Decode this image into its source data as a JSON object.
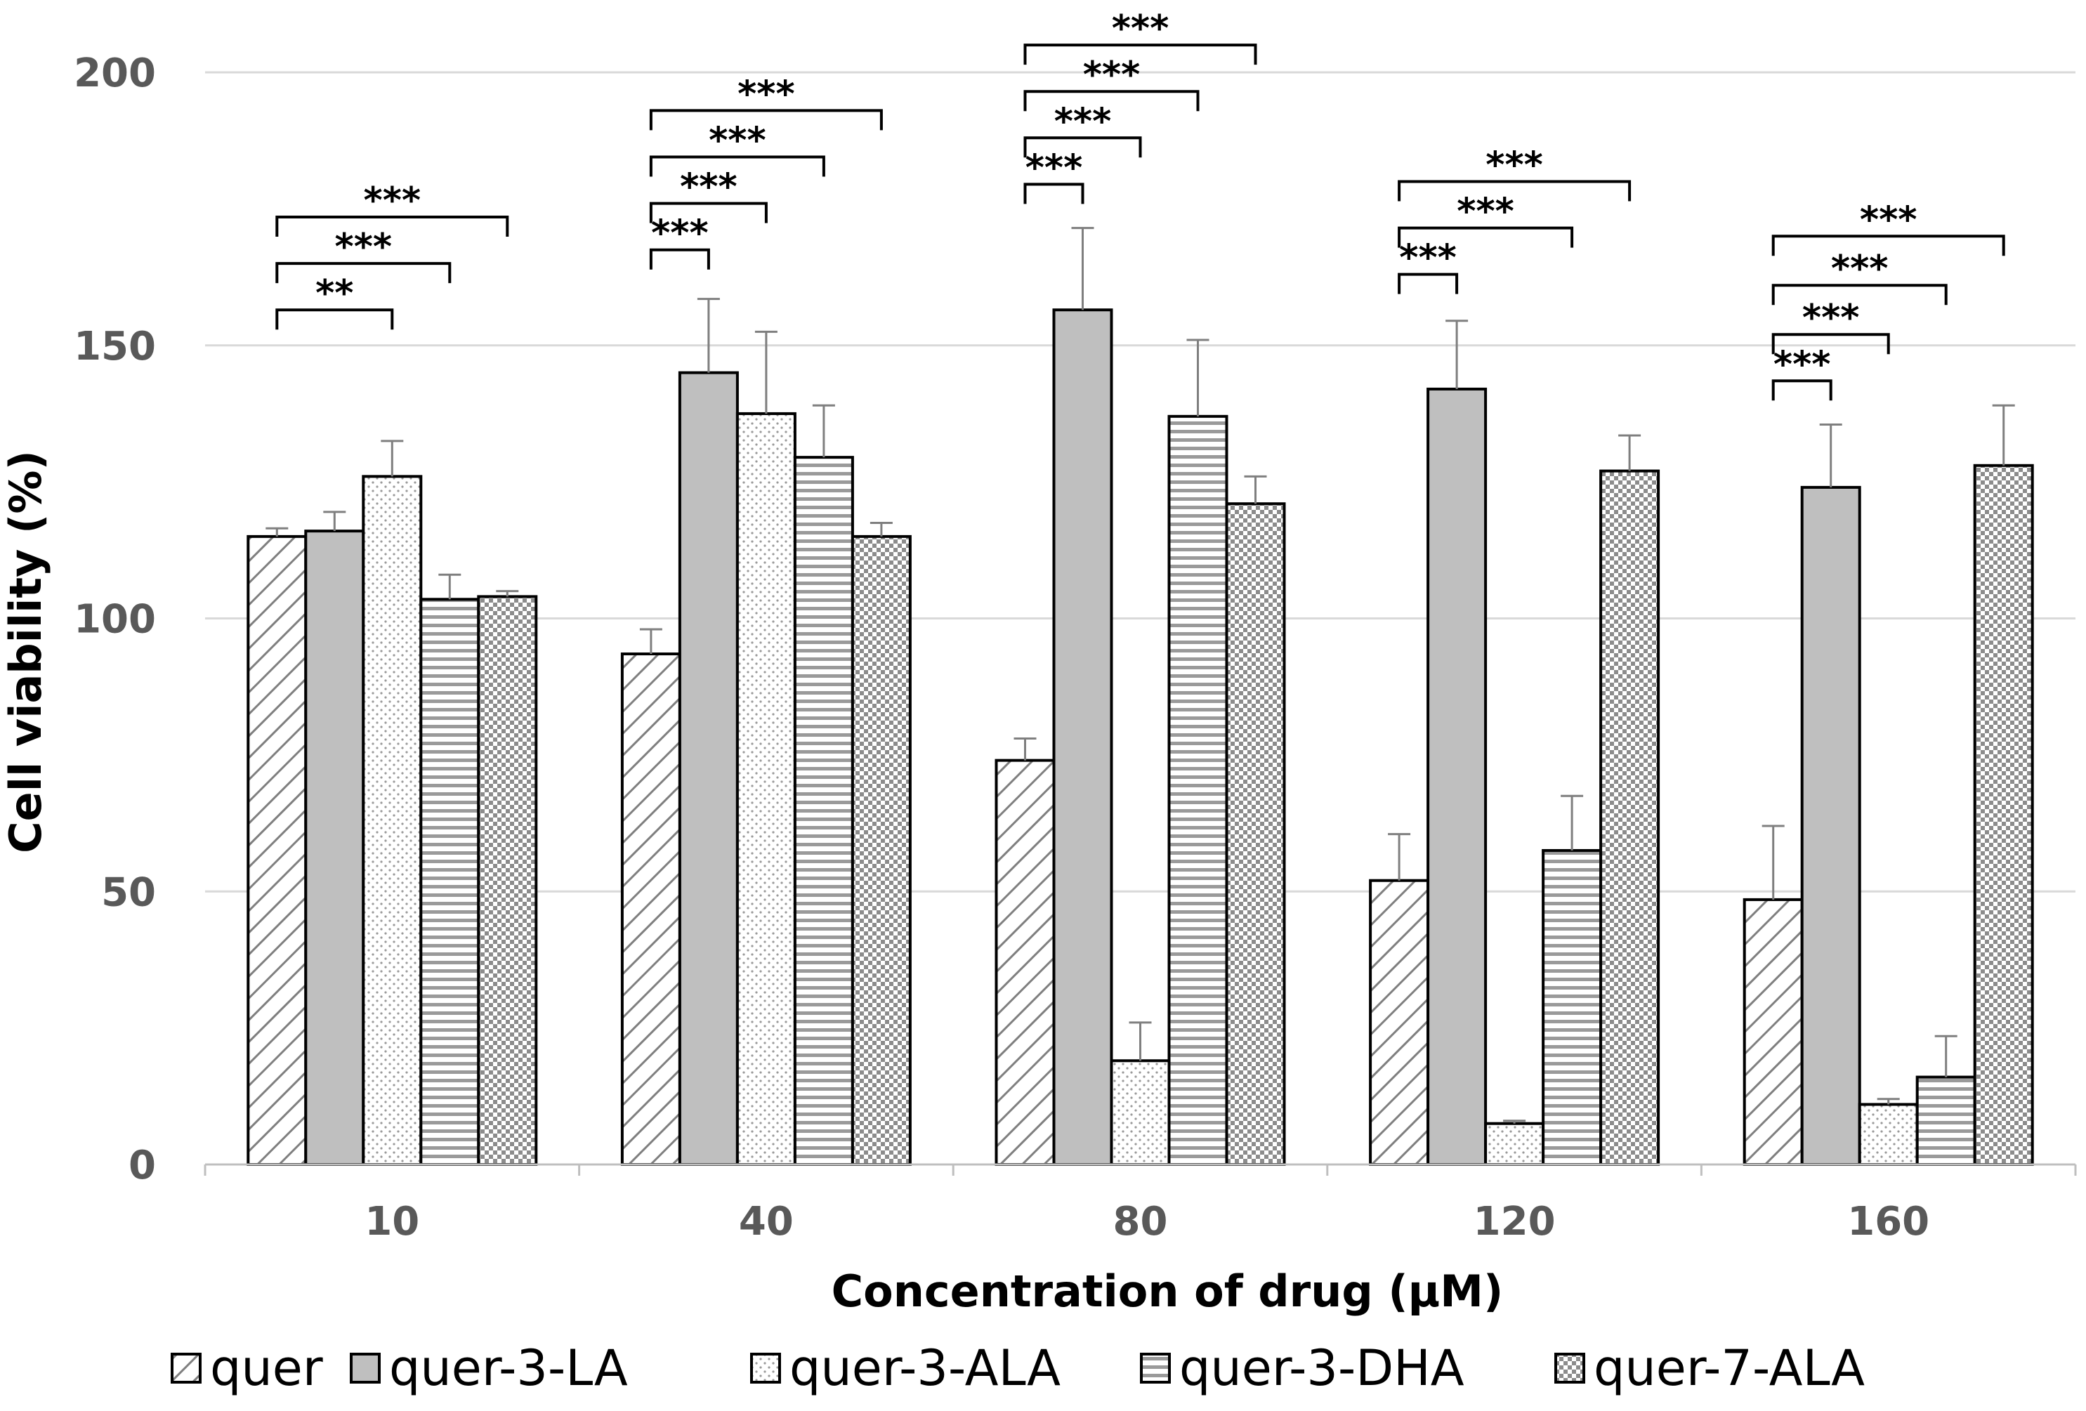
{
  "chart_data": {
    "type": "bar",
    "xlabel": "Concentration of drug (μM)",
    "ylabel": "Cell viability (%)",
    "ylim": [
      0,
      200
    ],
    "yticks": [
      0,
      50,
      100,
      150,
      200
    ],
    "grid": true,
    "legend_position": "bottom",
    "categories": [
      "10",
      "40",
      "80",
      "120",
      "160"
    ],
    "series": [
      {
        "name": "quer",
        "pattern": "diagonal-hatch",
        "fill": "#ffffff",
        "values": [
          115,
          93.5,
          74,
          52,
          48.5
        ],
        "errors": [
          1.5,
          4.5,
          4,
          8.5,
          13.5
        ]
      },
      {
        "name": "quer-3-LA",
        "pattern": "solid",
        "fill": "#bfbfbf",
        "values": [
          116,
          145,
          156.5,
          142,
          124
        ],
        "errors": [
          3.5,
          13.5,
          15,
          12.5,
          11.5
        ]
      },
      {
        "name": "quer-3-ALA",
        "pattern": "dots",
        "fill": "#ffffff",
        "values": [
          126,
          137.5,
          19,
          7.5,
          11
        ],
        "errors": [
          6.5,
          15,
          7,
          0.5,
          1
        ]
      },
      {
        "name": "quer-3-DHA",
        "pattern": "horizontal-lines",
        "fill": "#ffffff",
        "values": [
          103.5,
          129.5,
          137,
          57.5,
          16
        ],
        "errors": [
          4.5,
          9.5,
          14,
          10,
          7.5
        ]
      },
      {
        "name": "quer-7-ALA",
        "pattern": "checker",
        "fill": "#ffffff",
        "values": [
          104,
          115,
          121,
          127,
          128
        ],
        "errors": [
          1,
          2.5,
          5,
          6.5,
          11
        ]
      }
    ],
    "significance": [
      {
        "category": "10",
        "from": "quer",
        "to": "quer-3-ALA",
        "label": "**",
        "y": 156.5
      },
      {
        "category": "10",
        "from": "quer",
        "to": "quer-3-DHA",
        "label": "***",
        "y": 165
      },
      {
        "category": "10",
        "from": "quer",
        "to": "quer-7-ALA",
        "label": "***",
        "y": 173.5
      },
      {
        "category": "40",
        "from": "quer",
        "to": "quer-3-LA",
        "label": "***",
        "y": 167.5
      },
      {
        "category": "40",
        "from": "quer",
        "to": "quer-3-ALA",
        "label": "***",
        "y": 176
      },
      {
        "category": "40",
        "from": "quer",
        "to": "quer-3-DHA",
        "label": "***",
        "y": 184.5
      },
      {
        "category": "40",
        "from": "quer",
        "to": "quer-7-ALA",
        "label": "***",
        "y": 193
      },
      {
        "category": "80",
        "from": "quer",
        "to": "quer-3-LA",
        "label": "***",
        "y": 179.5
      },
      {
        "category": "80",
        "from": "quer",
        "to": "quer-3-ALA",
        "label": "***",
        "y": 188
      },
      {
        "category": "80",
        "from": "quer",
        "to": "quer-3-DHA",
        "label": "***",
        "y": 196.5
      },
      {
        "category": "80",
        "from": "quer",
        "to": "quer-7-ALA",
        "label": "***",
        "y": 205
      },
      {
        "category": "120",
        "from": "quer",
        "to": "quer-3-LA",
        "label": "***",
        "y": 163
      },
      {
        "category": "120",
        "from": "quer",
        "to": "quer-3-DHA",
        "label": "***",
        "y": 171.5
      },
      {
        "category": "120",
        "from": "quer",
        "to": "quer-7-ALA",
        "label": "***",
        "y": 180
      },
      {
        "category": "160",
        "from": "quer",
        "to": "quer-3-LA",
        "label": "***",
        "y": 143.5
      },
      {
        "category": "160",
        "from": "quer",
        "to": "quer-3-ALA",
        "label": "***",
        "y": 152
      },
      {
        "category": "160",
        "from": "quer",
        "to": "quer-3-DHA",
        "label": "***",
        "y": 161
      },
      {
        "category": "160",
        "from": "quer",
        "to": "quer-7-ALA",
        "label": "***",
        "y": 170
      }
    ]
  }
}
